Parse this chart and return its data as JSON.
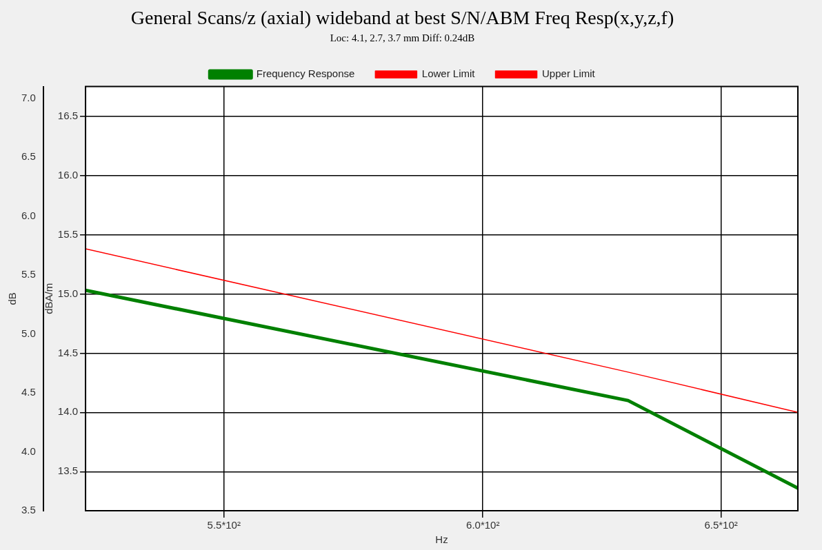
{
  "chart_data": {
    "type": "line",
    "title": "General Scans/z (axial) wideband at best S/N/ABM Freq Resp(x,y,z,f)",
    "subtitle": "Loc: 4.1, 2.7, 3.7 mm Diff: 0.24dB",
    "xlabel": "Hz",
    "ylabel": "dBA/m",
    "y2label": "dB",
    "log": "x",
    "x": [
      525,
      630,
      667
    ],
    "series": [
      {
        "name": "Frequency Response",
        "color": "#008000",
        "values": [
          15.03,
          14.1,
          13.36
        ]
      },
      {
        "name": "Lower Limit",
        "color": "#ff0000",
        "values": [
          null,
          null,
          null
        ]
      },
      {
        "name": "Upper Limit",
        "color": "#ff0000",
        "values": [
          15.38,
          14.34,
          14.0
        ]
      }
    ],
    "xlim": [
      525,
      667
    ],
    "xticks": [
      {
        "value": 550,
        "label": "5.5*10²"
      },
      {
        "value": 600,
        "label": "6.0*10²"
      },
      {
        "value": 650,
        "label": "6.5*10²"
      }
    ],
    "ylim": [
      13.17,
      16.75
    ],
    "yticks": [
      {
        "value": 13.5,
        "label": "13.5"
      },
      {
        "value": 14,
        "label": "14.0"
      },
      {
        "value": 14.5,
        "label": "14.5"
      },
      {
        "value": 15,
        "label": "15.0"
      },
      {
        "value": 15.5,
        "label": "15.5"
      },
      {
        "value": 16,
        "label": "16.0"
      },
      {
        "value": 16.5,
        "label": "16.5"
      }
    ],
    "y2lim": [
      3.5,
      7.1
    ],
    "y2ticks": [
      {
        "value": 3.5,
        "label": "3.5"
      },
      {
        "value": 4,
        "label": "4.0"
      },
      {
        "value": 4.5,
        "label": "4.5"
      },
      {
        "value": 5,
        "label": "5.0"
      },
      {
        "value": 5.5,
        "label": "5.5"
      },
      {
        "value": 6,
        "label": "6.0"
      },
      {
        "value": 6.5,
        "label": "6.5"
      },
      {
        "value": 7,
        "label": "7.0"
      }
    ],
    "grid": true,
    "legend": "top",
    "marker": "none",
    "line_style": "solid"
  }
}
